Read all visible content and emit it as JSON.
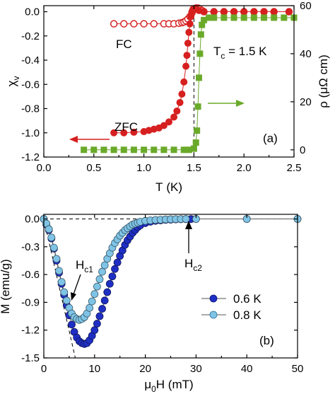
{
  "chart_data": [
    {
      "type": "scatter",
      "panel": "(a)",
      "xlabel_main": "T",
      "xlabel_unit": "(K)",
      "ylabel_left": "χ",
      "ylabel_left_sub": "v",
      "ylabel_right": "ρ (μΩ cm)",
      "xlim": [
        0,
        2.5
      ],
      "ylim_left": [
        -1.2,
        0.05
      ],
      "ylim_right": [
        -3,
        60
      ],
      "xticks": [
        0.0,
        0.5,
        1.0,
        1.5,
        2.0,
        2.5
      ],
      "yticks_left": [
        0.0,
        -0.2,
        -0.4,
        -0.6,
        -0.8,
        -1.0,
        -1.2
      ],
      "yticks_right": [
        0,
        20,
        40,
        60
      ],
      "annotations": {
        "fc": "FC",
        "zfc": "ZFC",
        "tc_main": "T",
        "tc_sub": "c",
        "tc_value": " = 1.5 K"
      },
      "tc_dashed_x": 1.5,
      "series": [
        {
          "name": "FC",
          "axis": "left",
          "color": "#d62020",
          "marker": "open-circle",
          "x": [
            0.7,
            0.8,
            0.9,
            1.0,
            1.1,
            1.2,
            1.25,
            1.3,
            1.35,
            1.38,
            1.4,
            1.42,
            1.44,
            1.46,
            1.48,
            1.5,
            1.52,
            1.54,
            1.56,
            1.58,
            1.6,
            1.7,
            1.8,
            1.9,
            2.0,
            2.1,
            2.2,
            2.3,
            2.45
          ],
          "y": [
            -0.1,
            -0.1,
            -0.1,
            -0.1,
            -0.1,
            -0.1,
            -0.1,
            -0.1,
            -0.095,
            -0.09,
            -0.085,
            -0.075,
            -0.06,
            -0.04,
            -0.01,
            0.02,
            0.03,
            0.03,
            0.02,
            0.01,
            0.0,
            0.0,
            0.0,
            0.0,
            0.0,
            0.0,
            0.0,
            0.0,
            0.0
          ]
        },
        {
          "name": "ZFC",
          "axis": "left",
          "color": "#d62020",
          "marker": "filled-circle",
          "x": [
            0.7,
            0.8,
            0.9,
            1.0,
            1.05,
            1.1,
            1.15,
            1.2,
            1.25,
            1.3,
            1.33,
            1.36,
            1.38,
            1.4,
            1.42,
            1.43,
            1.44,
            1.45,
            1.46,
            1.47,
            1.48,
            1.49,
            1.5,
            1.52,
            1.55,
            1.6,
            1.7,
            1.8,
            1.9,
            2.0,
            2.1,
            2.2,
            2.3,
            2.45
          ],
          "y": [
            -1.0,
            -1.0,
            -0.995,
            -0.99,
            -0.98,
            -0.97,
            -0.96,
            -0.94,
            -0.91,
            -0.87,
            -0.82,
            -0.75,
            -0.68,
            -0.58,
            -0.45,
            -0.36,
            -0.26,
            -0.17,
            -0.1,
            -0.04,
            0.0,
            0.02,
            0.025,
            0.02,
            0.01,
            0.0,
            0.0,
            0.0,
            0.0,
            0.0,
            0.0,
            0.0,
            0.0,
            0.0
          ]
        },
        {
          "name": "rho",
          "axis": "right",
          "color": "#6aaa2a",
          "marker": "filled-square",
          "x": [
            0.4,
            0.5,
            0.6,
            0.7,
            0.8,
            0.9,
            1.0,
            1.1,
            1.2,
            1.3,
            1.4,
            1.45,
            1.5,
            1.52,
            1.53,
            1.54,
            1.55,
            1.56,
            1.57,
            1.58,
            1.6,
            1.65,
            1.7,
            1.8,
            1.9,
            2.0,
            2.1,
            2.2,
            2.3,
            2.4,
            2.5
          ],
          "y": [
            0,
            0,
            0,
            0,
            0,
            0,
            0,
            0,
            0,
            0,
            0,
            0,
            0.5,
            3,
            8,
            18,
            30,
            40,
            48,
            52,
            54,
            55,
            55,
            55,
            55,
            55,
            55,
            55,
            55,
            55,
            55
          ]
        }
      ]
    },
    {
      "type": "scatter",
      "panel": "(b)",
      "xlabel_main": "μ",
      "xlabel_sub": "0",
      "xlabel_tail": "H (mT)",
      "ylabel": "M (emu/g)",
      "xlim": [
        0,
        50
      ],
      "ylim": [
        -1.5,
        0.05
      ],
      "xticks": [
        0,
        10,
        20,
        30,
        40,
        50
      ],
      "yticks": [
        0.0,
        -0.3,
        -0.6,
        -0.9,
        -1.2,
        -1.5
      ],
      "annotations": {
        "hc1_main": "H",
        "hc1_sub": "c1",
        "hc2_main": "H",
        "hc2_sub": "c2"
      },
      "legend": {
        "placement": "center-right",
        "entries": [
          "0.6 K",
          "0.8 K"
        ]
      },
      "linear_fit": {
        "x": [
          0,
          6.2
        ],
        "y": [
          0,
          -1.5
        ]
      },
      "series": [
        {
          "name": "0.6 K",
          "color": "#1f2fc4",
          "marker": "filled-circle",
          "x": [
            0,
            0.5,
            1,
            1.5,
            2,
            2.5,
            3,
            3.5,
            4,
            4.5,
            5,
            5.5,
            6,
            6.5,
            7,
            7.5,
            8,
            8.5,
            9,
            9.5,
            10,
            10.5,
            11,
            11.5,
            12,
            12.5,
            13,
            13.5,
            14,
            14.5,
            15,
            15.5,
            16,
            16.5,
            17,
            17.5,
            18,
            18.5,
            19,
            20,
            21,
            22,
            23,
            24,
            25,
            26,
            27,
            28,
            29,
            30,
            40,
            50
          ],
          "y": [
            0,
            -0.06,
            -0.12,
            -0.21,
            -0.32,
            -0.45,
            -0.58,
            -0.7,
            -0.82,
            -0.93,
            -1.04,
            -1.14,
            -1.22,
            -1.28,
            -1.32,
            -1.34,
            -1.35,
            -1.34,
            -1.31,
            -1.26,
            -1.2,
            -1.13,
            -1.05,
            -0.97,
            -0.88,
            -0.79,
            -0.7,
            -0.62,
            -0.54,
            -0.47,
            -0.4,
            -0.34,
            -0.28,
            -0.23,
            -0.19,
            -0.15,
            -0.12,
            -0.09,
            -0.07,
            -0.045,
            -0.03,
            -0.02,
            -0.015,
            -0.01,
            -0.008,
            -0.005,
            -0.003,
            -0.002,
            -0.001,
            0,
            0,
            0
          ]
        },
        {
          "name": "0.8 K",
          "color": "#7fc4e6",
          "marker": "filled-circle",
          "x": [
            0,
            0.5,
            1,
            1.5,
            2,
            2.5,
            3,
            3.5,
            4,
            4.5,
            5,
            5.5,
            6,
            6.5,
            7,
            7.5,
            8,
            8.5,
            9,
            9.5,
            10,
            10.5,
            11,
            11.5,
            12,
            12.5,
            13,
            13.5,
            14,
            14.5,
            15,
            15.5,
            16,
            16.5,
            17,
            17.5,
            18,
            18.5,
            19,
            20,
            21,
            22,
            23,
            24,
            25,
            26,
            27,
            28,
            30,
            40,
            50
          ],
          "y": [
            0,
            -0.05,
            -0.11,
            -0.2,
            -0.31,
            -0.43,
            -0.56,
            -0.68,
            -0.79,
            -0.88,
            -0.96,
            -1.02,
            -1.06,
            -1.08,
            -1.09,
            -1.08,
            -1.06,
            -1.02,
            -0.96,
            -0.89,
            -0.81,
            -0.73,
            -0.65,
            -0.57,
            -0.5,
            -0.43,
            -0.37,
            -0.31,
            -0.26,
            -0.22,
            -0.18,
            -0.15,
            -0.12,
            -0.1,
            -0.08,
            -0.06,
            -0.05,
            -0.04,
            -0.03,
            -0.02,
            -0.015,
            -0.01,
            -0.008,
            -0.005,
            -0.003,
            -0.002,
            -0.001,
            0,
            0,
            0,
            0
          ]
        }
      ]
    }
  ]
}
